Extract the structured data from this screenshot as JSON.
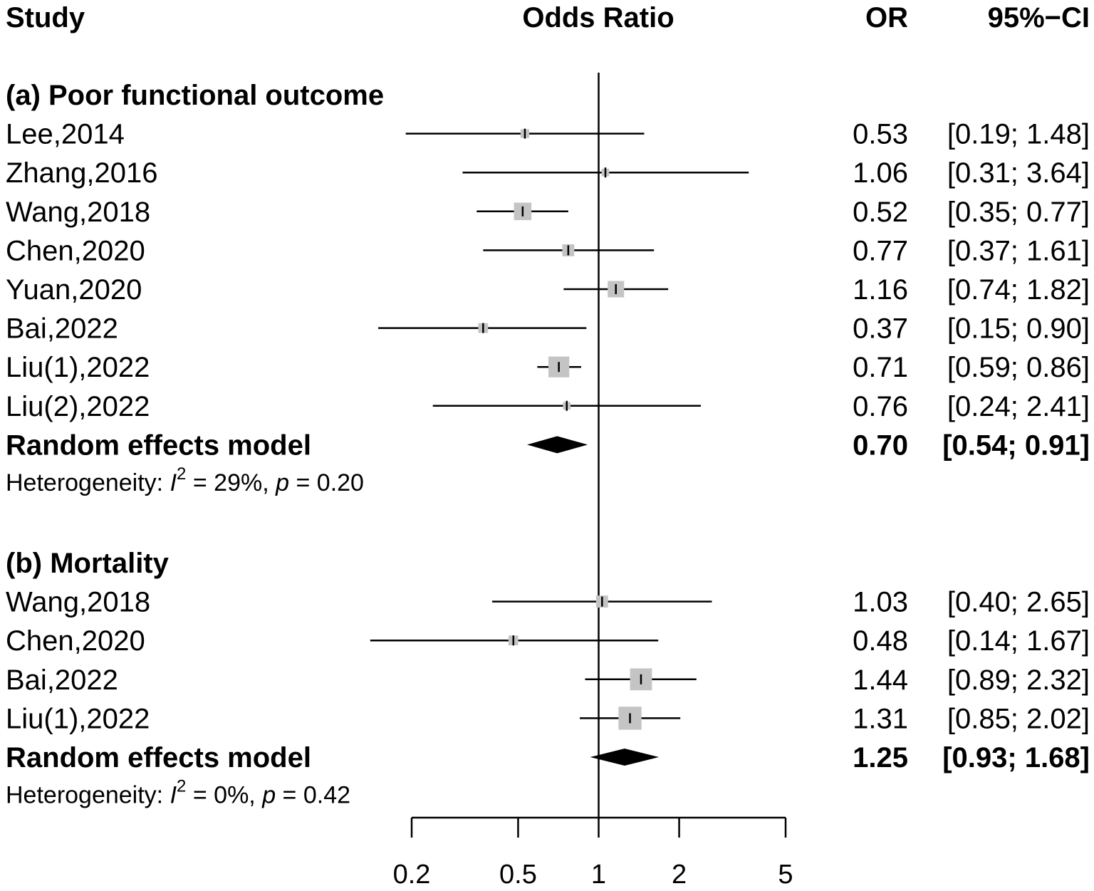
{
  "header": {
    "study": "Study",
    "odds_ratio": "Odds Ratio",
    "or": "OR",
    "ci": "95%−CI"
  },
  "chart_data": {
    "type": "forest",
    "xlabel": "Odds Ratio",
    "xscale": "log",
    "xlim": [
      0.2,
      5
    ],
    "ticks": [
      "0.2",
      "0.5",
      "1",
      "2",
      "5"
    ],
    "tick_values": [
      0.2,
      0.5,
      1,
      2,
      5
    ],
    "reference_line": 1,
    "colors": {
      "square": "#c4c4c4",
      "line": "#000000",
      "diamond": "#000000"
    },
    "groups": [
      {
        "title": "(a) Poor functional outcome",
        "studies": [
          {
            "study": "Lee,2014",
            "or": 0.53,
            "lo": 0.19,
            "hi": 1.48,
            "or_text": "0.53",
            "ci_text": "[0.19; 1.48]",
            "weight": 2
          },
          {
            "study": "Zhang,2016",
            "or": 1.06,
            "lo": 0.31,
            "hi": 3.64,
            "or_text": "1.06",
            "ci_text": "[0.31; 3.64]",
            "weight": 1.5
          },
          {
            "study": "Wang,2018",
            "or": 0.52,
            "lo": 0.35,
            "hi": 0.77,
            "or_text": "0.52",
            "ci_text": "[0.35; 0.77]",
            "weight": 6
          },
          {
            "study": "Chen,2020",
            "or": 0.77,
            "lo": 0.37,
            "hi": 1.61,
            "or_text": "0.77",
            "ci_text": "[0.37; 1.61]",
            "weight": 3.5
          },
          {
            "study": "Yuan,2020",
            "or": 1.16,
            "lo": 0.74,
            "hi": 1.82,
            "or_text": "1.16",
            "ci_text": "[0.74; 1.82]",
            "weight": 5.5
          },
          {
            "study": "Bai,2022",
            "or": 0.37,
            "lo": 0.15,
            "hi": 0.9,
            "or_text": "0.37",
            "ci_text": "[0.15; 0.90]",
            "weight": 2.5
          },
          {
            "study": "Liu(1),2022",
            "or": 0.71,
            "lo": 0.59,
            "hi": 0.86,
            "or_text": "0.71",
            "ci_text": "[0.59; 0.86]",
            "weight": 7.5
          },
          {
            "study": "Liu(2),2022",
            "or": 0.76,
            "lo": 0.24,
            "hi": 2.41,
            "or_text": "0.76",
            "ci_text": "[0.24; 2.41]",
            "weight": 1.5
          }
        ],
        "pooled": {
          "label": "Random effects model",
          "or": 0.7,
          "lo": 0.54,
          "hi": 0.91,
          "or_text": "0.70",
          "ci_text": "[0.54; 0.91]"
        },
        "heterogeneity": {
          "prefix": "Heterogeneity: ",
          "i_letter": "I",
          "sup": "2",
          "i2_text": " = 29%, ",
          "p_letter": "p",
          "p_text": " = 0.20"
        }
      },
      {
        "title": "(b) Mortality",
        "studies": [
          {
            "study": "Wang,2018",
            "or": 1.03,
            "lo": 0.4,
            "hi": 2.65,
            "or_text": "1.03",
            "ci_text": "[0.40; 2.65]",
            "weight": 3.5
          },
          {
            "study": "Chen,2020",
            "or": 0.48,
            "lo": 0.14,
            "hi": 1.67,
            "or_text": "0.48",
            "ci_text": "[0.14; 1.67]",
            "weight": 2.5
          },
          {
            "study": "Bai,2022",
            "or": 1.44,
            "lo": 0.89,
            "hi": 2.32,
            "or_text": "1.44",
            "ci_text": "[0.89; 2.32]",
            "weight": 8
          },
          {
            "study": "Liu(1),2022",
            "or": 1.31,
            "lo": 0.85,
            "hi": 2.02,
            "or_text": "1.31",
            "ci_text": "[0.85; 2.02]",
            "weight": 8.5
          }
        ],
        "pooled": {
          "label": "Random effects model",
          "or": 1.25,
          "lo": 0.93,
          "hi": 1.68,
          "or_text": "1.25",
          "ci_text": "[0.93; 1.68]"
        },
        "heterogeneity": {
          "prefix": "Heterogeneity: ",
          "i_letter": "I",
          "sup": "2",
          "i2_text": " = 0%, ",
          "p_letter": "p",
          "p_text": " = 0.42"
        }
      }
    ]
  }
}
